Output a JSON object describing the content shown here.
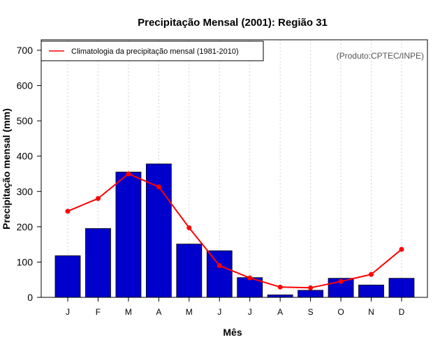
{
  "chart_data": {
    "type": "bar",
    "title": "Precipitação Mensal (2001): Região 31",
    "xlabel": "Mês",
    "ylabel": "Precipitação mensal (mm)",
    "categories": [
      "J",
      "F",
      "M",
      "A",
      "M",
      "J",
      "J",
      "A",
      "S",
      "O",
      "N",
      "D"
    ],
    "ylim": [
      0,
      700
    ],
    "yticks": [
      0,
      100,
      200,
      300,
      400,
      500,
      600,
      700
    ],
    "grid": "vertical dotted",
    "series": [
      {
        "name": "2001",
        "type": "bar",
        "color": "#0000cd",
        "values": [
          118,
          195,
          355,
          378,
          151,
          132,
          56,
          7,
          20,
          54,
          35,
          54
        ]
      },
      {
        "name": "Climatologia da precipitação mensal (1981-2010)",
        "type": "line",
        "color": "#ff0000",
        "values": [
          244,
          280,
          350,
          313,
          197,
          90,
          55,
          29,
          27,
          45,
          65,
          136
        ]
      }
    ],
    "legend": {
      "position": "top-left",
      "entries": [
        "Climatologia da precipitação mensal (1981-2010)"
      ]
    },
    "annotation": "(Produto:CPTEC/INPE)"
  }
}
